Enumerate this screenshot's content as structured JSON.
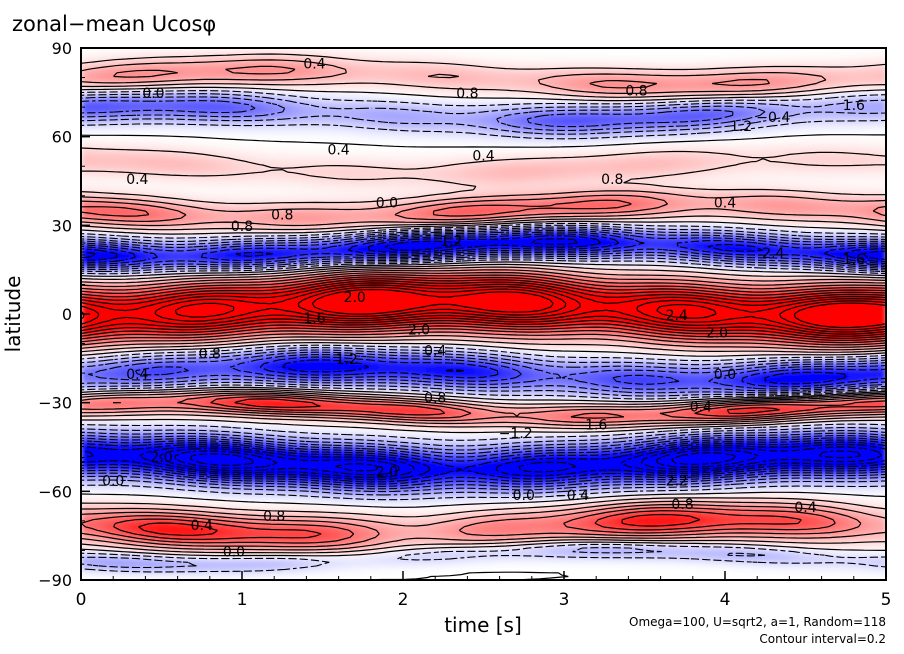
{
  "chart_data": {
    "type": "heatmap",
    "title": "zonal−mean Ucosφ",
    "xlabel": "time [s]",
    "ylabel": "latitude",
    "xlim": [
      0,
      5
    ],
    "ylim": [
      -90,
      90
    ],
    "x_ticks": [
      0,
      1,
      2,
      3,
      4,
      5
    ],
    "x_tick_labels": [
      "0",
      "1",
      "2",
      "3",
      "4",
      "5"
    ],
    "y_ticks": [
      90,
      60,
      30,
      0,
      -30,
      -60,
      -90
    ],
    "y_tick_labels": [
      "90",
      "60",
      "30",
      "0",
      "−30",
      "−60",
      "−90"
    ],
    "grid": false,
    "contour_interval": 0.2,
    "colors": {
      "positive": "#ff0000",
      "negative": "#0000ff",
      "zero": "#ffffff"
    },
    "bands": [
      {
        "lat_center": 80,
        "half_width": 5,
        "amp": 0.5,
        "wave": 0.3
      },
      {
        "lat_center": 68,
        "half_width": 5,
        "amp": -0.7,
        "wave": 0.4
      },
      {
        "lat_center": 50,
        "half_width": 5,
        "amp": 0.3,
        "wave": 0.3
      },
      {
        "lat_center": 35,
        "half_width": 5,
        "amp": 0.7,
        "wave": 0.3
      },
      {
        "lat_center": 22,
        "half_width": 5,
        "amp": -1.6,
        "wave": 0.2
      },
      {
        "lat_center": 2,
        "half_width": 9,
        "amp": 2.4,
        "wave": 0.15
      },
      {
        "lat_center": -20,
        "half_width": 6,
        "amp": -1.2,
        "wave": 0.25
      },
      {
        "lat_center": -32,
        "half_width": 4,
        "amp": 1.0,
        "wave": 0.3
      },
      {
        "lat_center": -50,
        "half_width": 7,
        "amp": -2.0,
        "wave": 0.2
      },
      {
        "lat_center": -72,
        "half_width": 6,
        "amp": 0.9,
        "wave": 0.4
      },
      {
        "lat_center": -82,
        "half_width": 3,
        "amp": -0.4,
        "wave": 0.3
      }
    ],
    "contour_labels": [
      {
        "t": 0.45,
        "lat": 73,
        "text": "0.0"
      },
      {
        "t": 1.45,
        "lat": 83,
        "text": "0.4"
      },
      {
        "t": 2.4,
        "lat": 73,
        "text": "0.8"
      },
      {
        "t": 3.45,
        "lat": 74,
        "text": "0.8"
      },
      {
        "t": 4.3,
        "lat": 65,
        "text": "−0.4"
      },
      {
        "t": 4.8,
        "lat": 69,
        "text": "1.6"
      },
      {
        "t": 1.6,
        "lat": 54,
        "text": "0.4"
      },
      {
        "t": 2.5,
        "lat": 52,
        "text": "0.4"
      },
      {
        "t": 3.3,
        "lat": 44,
        "text": "0.8"
      },
      {
        "t": 4.1,
        "lat": 62,
        "text": "1.2"
      },
      {
        "t": 0.35,
        "lat": 44,
        "text": "0.4"
      },
      {
        "t": 1.25,
        "lat": 32,
        "text": "0.8"
      },
      {
        "t": 1.9,
        "lat": 36,
        "text": "0.0"
      },
      {
        "t": 4.0,
        "lat": 36,
        "text": "0.4"
      },
      {
        "t": 1.0,
        "lat": 28,
        "text": "0.8"
      },
      {
        "t": 2.3,
        "lat": 23,
        "text": "1.2"
      },
      {
        "t": 4.3,
        "lat": 19,
        "text": "2.4"
      },
      {
        "t": 4.8,
        "lat": 17,
        "text": "1.6"
      },
      {
        "t": 1.7,
        "lat": 4,
        "text": "2.0"
      },
      {
        "t": 1.45,
        "lat": -3,
        "text": "1.6"
      },
      {
        "t": 2.1,
        "lat": -7,
        "text": "2.0"
      },
      {
        "t": 3.7,
        "lat": -2,
        "text": "2.4"
      },
      {
        "t": 3.95,
        "lat": -8,
        "text": "2.0"
      },
      {
        "t": 2.2,
        "lat": -14,
        "text": "0.4"
      },
      {
        "t": 0.8,
        "lat": -15,
        "text": "0.8"
      },
      {
        "t": 0.35,
        "lat": -22,
        "text": "0.4"
      },
      {
        "t": 1.65,
        "lat": -17,
        "text": "1.2"
      },
      {
        "t": 4.0,
        "lat": -22,
        "text": "0.0"
      },
      {
        "t": 2.2,
        "lat": -30,
        "text": "0.8"
      },
      {
        "t": 3.85,
        "lat": -33,
        "text": "0.4"
      },
      {
        "t": 3.2,
        "lat": -39,
        "text": "1.6"
      },
      {
        "t": 2.7,
        "lat": -42,
        "text": "−1.2"
      },
      {
        "t": 0.5,
        "lat": -50,
        "text": "2.0"
      },
      {
        "t": 1.9,
        "lat": -55,
        "text": "2.0"
      },
      {
        "t": 3.7,
        "lat": -58,
        "text": "2.2"
      },
      {
        "t": 0.2,
        "lat": -58,
        "text": "0.0"
      },
      {
        "t": 2.75,
        "lat": -63,
        "text": "0.0"
      },
      {
        "t": 3.05,
        "lat": -63,
        "text": "−0.4"
      },
      {
        "t": 3.7,
        "lat": -66,
        "text": "−0.8"
      },
      {
        "t": 4.5,
        "lat": -67,
        "text": "0.4"
      },
      {
        "t": 1.2,
        "lat": -70,
        "text": "0.8"
      },
      {
        "t": 0.75,
        "lat": -73,
        "text": "0.4"
      },
      {
        "t": 0.95,
        "lat": -82,
        "text": "0.0"
      }
    ]
  },
  "annotations": {
    "params": "Omega=100, U=sqrt2, a=1, Random=118",
    "contour_interval": "Contour interval=0.2"
  }
}
